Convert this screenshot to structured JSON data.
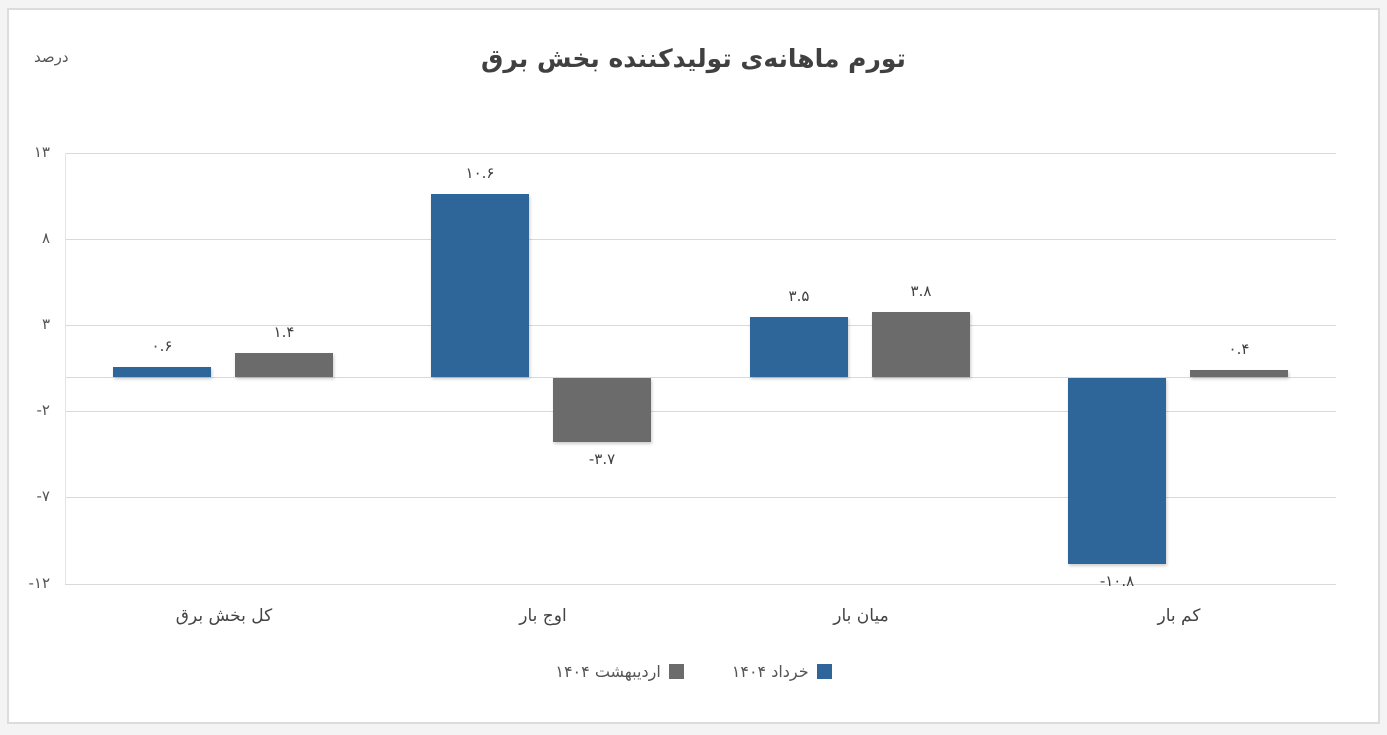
{
  "title": "تورم ماهانه‌ی تولیدکننده بخش برق",
  "unit_label": "درصد",
  "y_ticks": [
    {
      "label": "۱۳",
      "value": 13
    },
    {
      "label": "۸",
      "value": 8
    },
    {
      "label": "۳",
      "value": 3
    },
    {
      "label": "-۲",
      "value": -2
    },
    {
      "label": "-۷",
      "value": -7
    },
    {
      "label": "-۱۲",
      "value": -12
    }
  ],
  "categories": [
    "کل بخش برق",
    "اوج بار",
    "میان بار",
    "کم بار"
  ],
  "legend": [
    {
      "label": "خرداد ۱۴۰۴",
      "color": "#2e6699"
    },
    {
      "label": "اردیبهشت ۱۴۰۴",
      "color": "#6b6b6b"
    }
  ],
  "value_labels": {
    "khordad": [
      "۰.۶",
      "۱۰.۶",
      "۳.۵",
      "-۱۰.۸"
    ],
    "ordibehesht": [
      "۱.۴",
      "-۳.۷",
      "۳.۸",
      "۰.۴"
    ]
  },
  "chart_data": {
    "type": "bar",
    "title": "تورم ماهانه‌ی تولیدکننده بخش برق",
    "xlabel": "",
    "ylabel": "درصد",
    "categories": [
      "کل بخش برق",
      "اوج بار",
      "میان بار",
      "کم بار"
    ],
    "series": [
      {
        "name": "خرداد ۱۴۰۴",
        "color": "#2e6699",
        "values": [
          0.6,
          10.6,
          3.5,
          -10.8
        ]
      },
      {
        "name": "اردیبهشت ۱۴۰۴",
        "color": "#6b6b6b",
        "values": [
          1.4,
          -3.7,
          3.8,
          0.4
        ]
      }
    ],
    "ylim": [
      -12,
      13
    ],
    "y_ticks": [
      13,
      8,
      3,
      -2,
      -7,
      -12
    ],
    "grid": true,
    "legend_position": "bottom",
    "data_labels": true
  }
}
